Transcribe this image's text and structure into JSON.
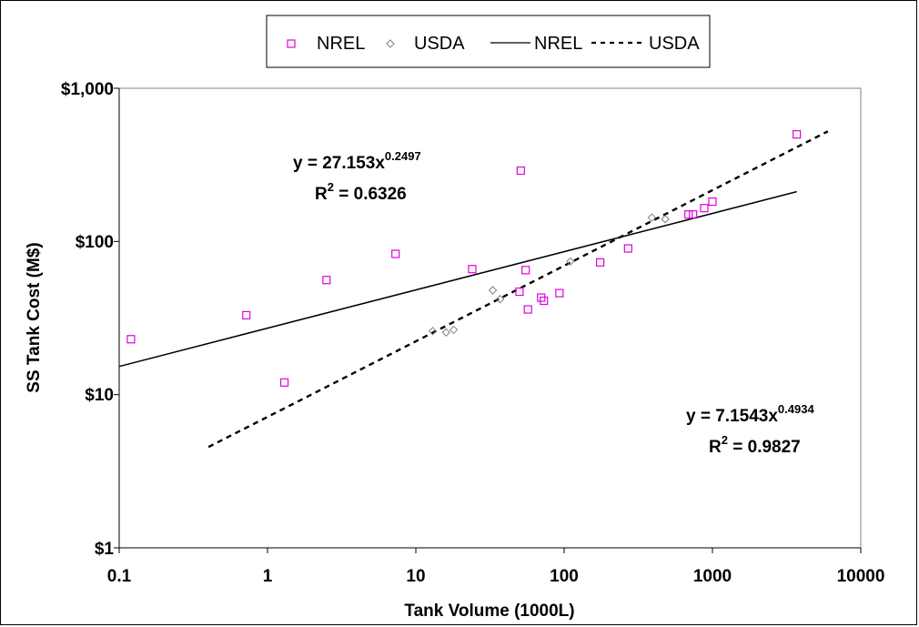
{
  "chart_data": {
    "type": "scatter",
    "title": "",
    "xlabel": "Tank Volume (1000L)",
    "ylabel": "SS Tank Cost (M$)",
    "x_scale": "log",
    "y_scale": "log",
    "xlim": [
      0.1,
      10000
    ],
    "ylim": [
      1,
      1000
    ],
    "x_ticks": [
      "0.1",
      "1",
      "10",
      "100",
      "1000",
      "10000"
    ],
    "y_ticks": [
      "$1",
      "$10",
      "$100",
      "$1,000"
    ],
    "grid": false,
    "legend_position": "top",
    "legend": [
      "NREL",
      "USDA",
      "NREL",
      "USDA"
    ],
    "colors": {
      "nrel": "#e000e0",
      "usda": "#808080",
      "line": "#000000"
    },
    "series": [
      {
        "name": "NREL",
        "kind": "points",
        "marker": "square",
        "points": [
          [
            0.12,
            23
          ],
          [
            0.72,
            33
          ],
          [
            1.3,
            12
          ],
          [
            2.5,
            56
          ],
          [
            7.3,
            83
          ],
          [
            24,
            66
          ],
          [
            50,
            47
          ],
          [
            51,
            290
          ],
          [
            55,
            65
          ],
          [
            57,
            36
          ],
          [
            70,
            43
          ],
          [
            73,
            41
          ],
          [
            93,
            46
          ],
          [
            175,
            73
          ],
          [
            270,
            90
          ],
          [
            690,
            150
          ],
          [
            740,
            150
          ],
          [
            880,
            165
          ],
          [
            1000,
            182
          ],
          [
            3700,
            500
          ]
        ]
      },
      {
        "name": "USDA",
        "kind": "points",
        "marker": "diamond",
        "points": [
          [
            13,
            26
          ],
          [
            16,
            25.5
          ],
          [
            18,
            26.5
          ],
          [
            33,
            48
          ],
          [
            37,
            42
          ],
          [
            110,
            74
          ],
          [
            390,
            143
          ],
          [
            480,
            140
          ]
        ]
      },
      {
        "name": "NREL",
        "kind": "trendline",
        "style": "solid",
        "equation": {
          "coef": 27.153,
          "exp": 0.2497
        },
        "x_range": [
          0.1,
          3700
        ]
      },
      {
        "name": "USDA",
        "kind": "trendline",
        "style": "dotted",
        "equation": {
          "coef": 7.1543,
          "exp": 0.4934
        },
        "x_range": [
          0.4,
          6000
        ]
      }
    ],
    "annotations": {
      "nrel_eq_base": "y = 27.153x",
      "nrel_eq_exp": "0.2497",
      "nrel_r2_label": "R",
      "nrel_r2_exp": "2",
      "nrel_r2_value": " = 0.6326",
      "usda_eq_base": "y = 7.1543x",
      "usda_eq_exp": "0.4934",
      "usda_r2_label": "R",
      "usda_r2_exp": "2",
      "usda_r2_value": " = 0.9827"
    }
  }
}
